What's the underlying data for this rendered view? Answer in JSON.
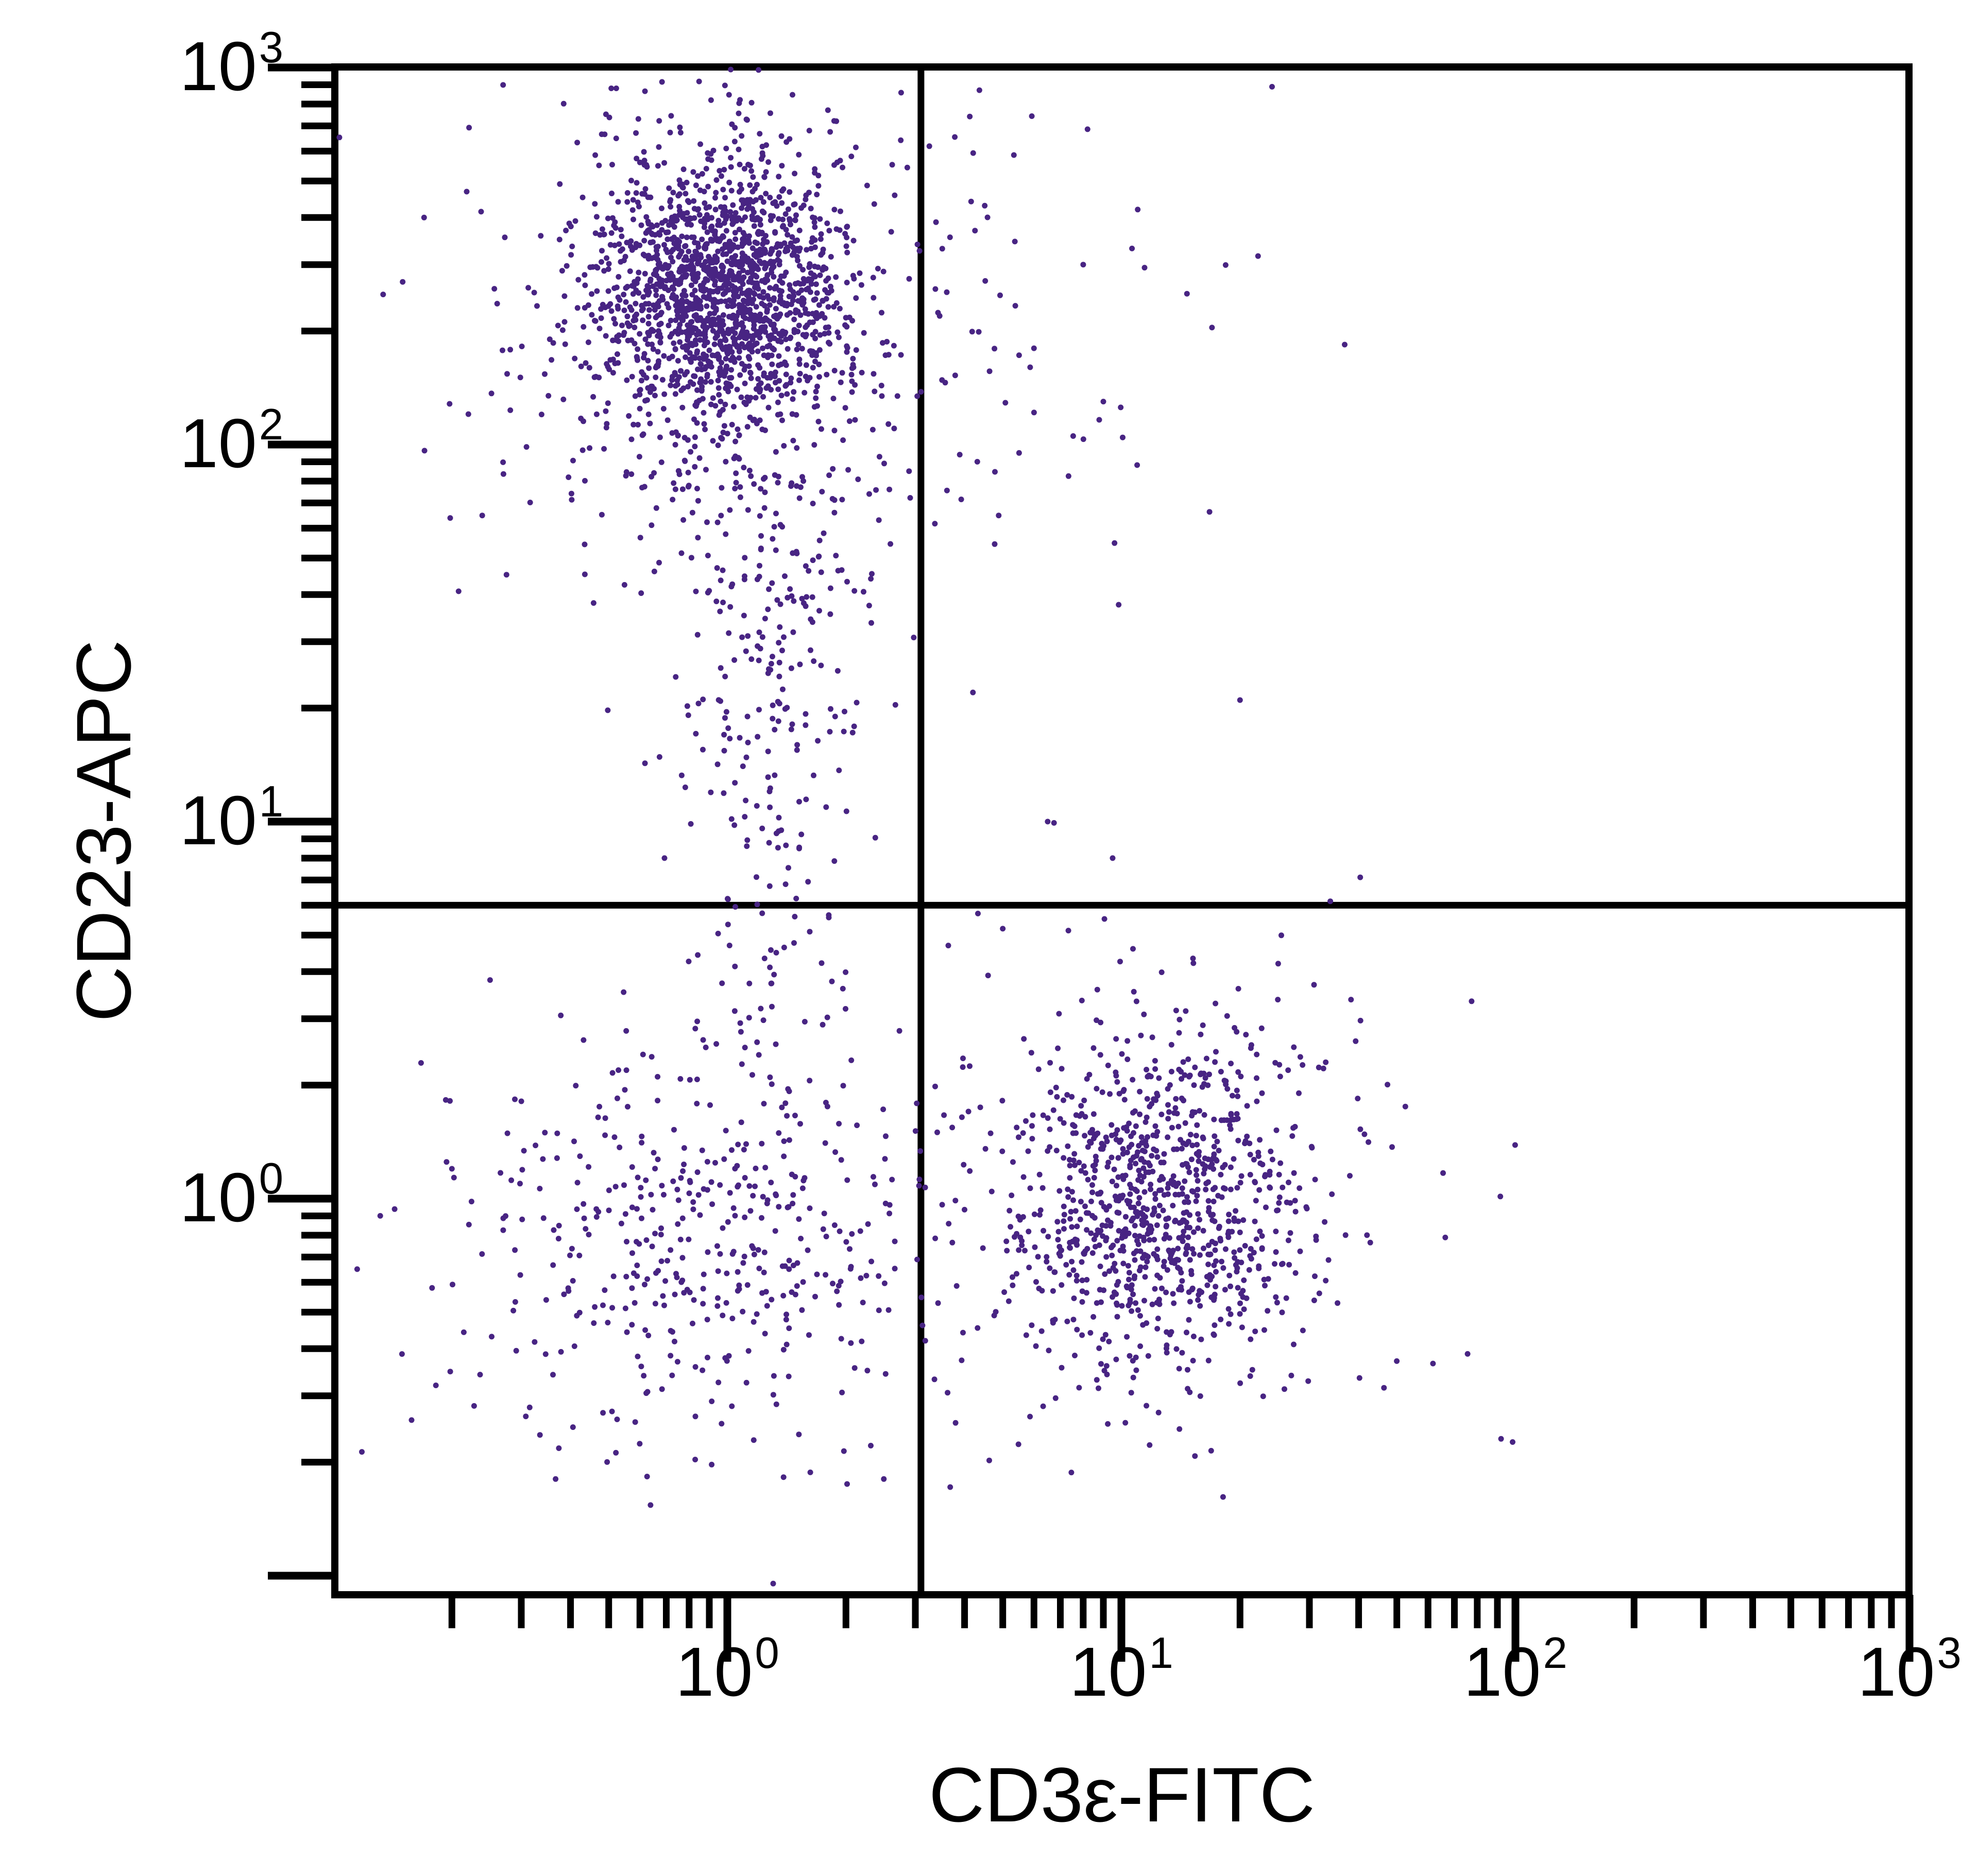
{
  "figure": {
    "background_color": "#ffffff",
    "axis_color": "#000000"
  },
  "chart_data": {
    "type": "scatter",
    "subtype": "flow-cytometry-dot-plot",
    "title": "",
    "xlabel": "CD3ε-FITC",
    "ylabel": "CD23-APC",
    "x_scale": "log",
    "y_scale": "log",
    "xlim": [
      0.1,
      1000
    ],
    "ylim": [
      0.09,
      1000
    ],
    "tick_base": "10",
    "x_tick_exponents": [
      0,
      1,
      2,
      3
    ],
    "y_tick_exponents": [
      0,
      1,
      2,
      3
    ],
    "grid": false,
    "legend": false,
    "dot_color": "#482483",
    "dot_radius_px": 5.5,
    "quadrant_gates": {
      "x": 3.1,
      "y": 6.0
    },
    "seed": 20231107,
    "populations": [
      {
        "name": "CD23+ CD3- cluster core (upper left)",
        "center_log10": [
          -0.02,
          2.4
        ],
        "sigma_log10": [
          0.155,
          0.175
        ],
        "count": 1500
      },
      {
        "name": "CD23+ CD3- cluster halo",
        "center_log10": [
          0.0,
          2.28
        ],
        "sigma_log10": [
          0.3,
          0.33
        ],
        "count": 430
      },
      {
        "name": "CD23+ downward tail",
        "center_log10": [
          0.1,
          1.35
        ],
        "sigma_log10": [
          0.13,
          0.5
        ],
        "count": 280
      },
      {
        "name": "CD23- CD3- double negative (lower left)",
        "center_log10": [
          -0.07,
          -0.12
        ],
        "sigma_log10": [
          0.3,
          0.27
        ],
        "count": 450
      },
      {
        "name": "CD3+ CD23- cluster core (lower right)",
        "center_log10": [
          1.1,
          -0.02
        ],
        "sigma_log10": [
          0.19,
          0.21
        ],
        "count": 850
      },
      {
        "name": "CD3+ CD23- cluster halo",
        "center_log10": [
          1.08,
          -0.05
        ],
        "sigma_log10": [
          0.33,
          0.36
        ],
        "count": 220
      },
      {
        "name": "CD3+ CD23+ sparse (upper right)",
        "center_log10": [
          0.85,
          2.3
        ],
        "sigma_log10": [
          0.26,
          0.35
        ],
        "count": 38
      }
    ],
    "extra_points": [
      [
        1.02,
        990
      ],
      [
        1.2,
        985
      ],
      [
        0.115,
        0.65
      ],
      [
        0.17,
        400
      ],
      [
        0.15,
        270
      ],
      [
        0.2,
        1.2
      ],
      [
        0.25,
        3.8
      ],
      [
        0.6,
        560
      ],
      [
        1.9,
        560
      ],
      [
        4.5,
        430
      ],
      [
        11,
        420
      ],
      [
        8,
        300
      ],
      [
        6,
        180
      ],
      [
        5.5,
        95
      ],
      [
        9,
        130
      ],
      [
        4.2,
        22
      ],
      [
        20,
        21
      ],
      [
        6.5,
        10
      ],
      [
        9.5,
        8
      ],
      [
        5,
        5.2
      ],
      [
        25,
        4.2
      ],
      [
        33,
        2.3
      ],
      [
        38,
        1.15
      ],
      [
        42,
        0.8
      ]
    ],
    "approx_total_events": 4000
  }
}
